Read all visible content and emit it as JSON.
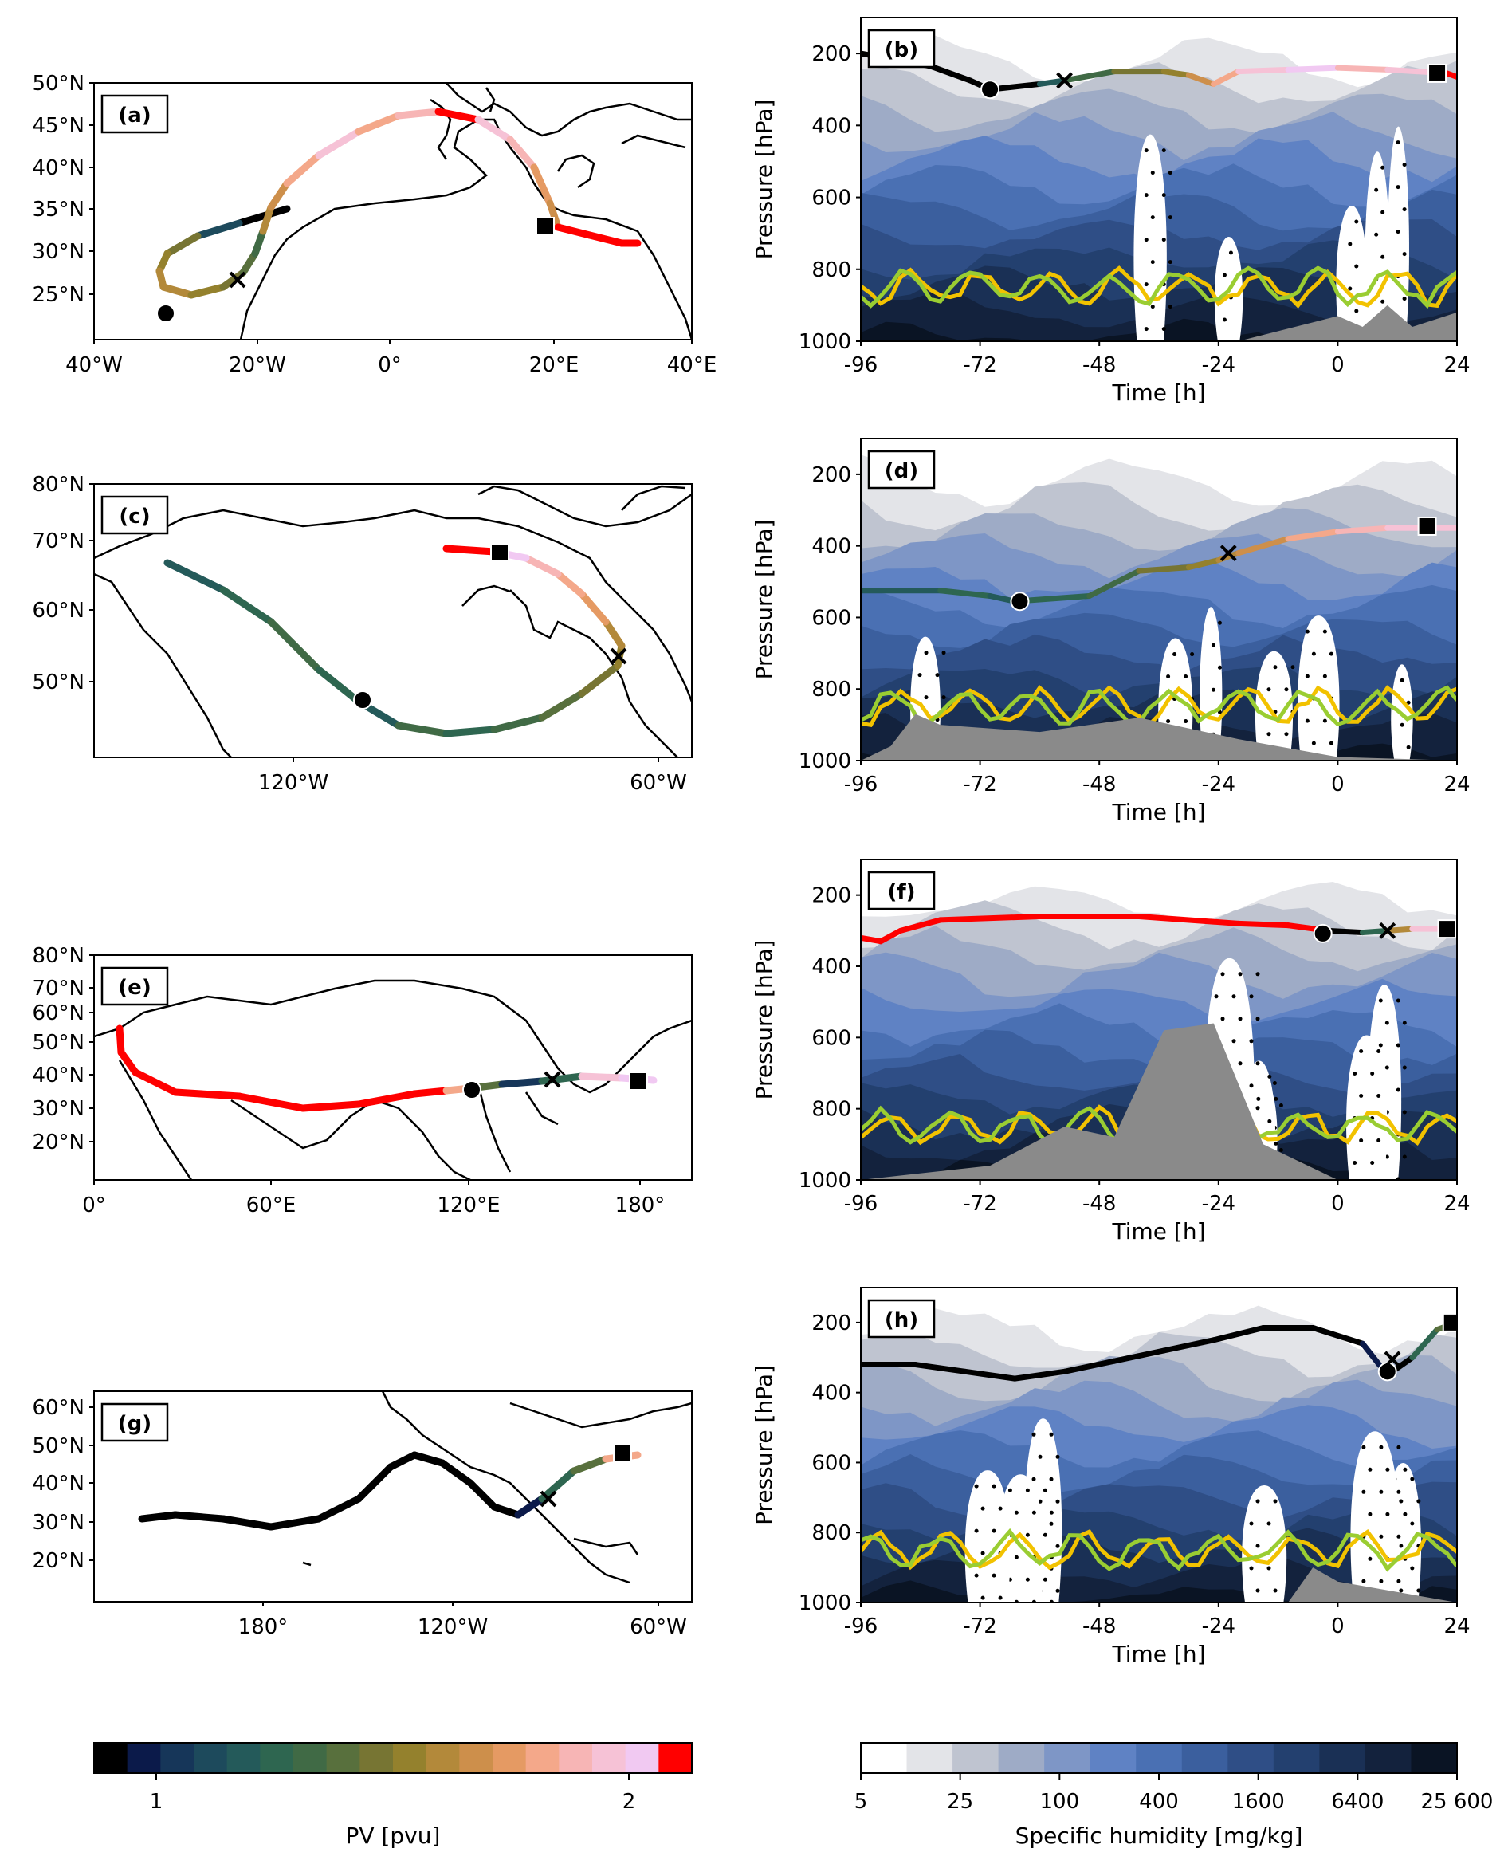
{
  "chart_data": [
    {
      "type": "line",
      "panel": "map",
      "label": "(a)",
      "yticks": [
        "50°N",
        "45°N",
        "40°N",
        "35°N",
        "30°N",
        "25°N"
      ],
      "xticks": [
        "40°W",
        "20°W",
        "0°",
        "20°E",
        "40°E"
      ]
    },
    {
      "type": "heatmap",
      "panel": "section",
      "label": "(b)",
      "ylabel": "Pressure [hPa]",
      "xlabel": "Time [h]",
      "yticks": [
        "200",
        "400",
        "600",
        "800",
        "1000"
      ],
      "xticks": [
        "-96",
        "-72",
        "-48",
        "-24",
        "0",
        "24"
      ],
      "xlim": [
        -96,
        24
      ],
      "ylim": [
        1000,
        100
      ]
    },
    {
      "type": "line",
      "panel": "map",
      "label": "(c)",
      "yticks": [
        "80°N",
        "70°N",
        "60°N",
        "50°N"
      ],
      "xticks": [
        "120°W",
        "60°W"
      ]
    },
    {
      "type": "heatmap",
      "panel": "section",
      "label": "(d)",
      "ylabel": "Pressure [hPa]",
      "xlabel": "Time [h]",
      "yticks": [
        "200",
        "400",
        "600",
        "800",
        "1000"
      ],
      "xticks": [
        "-96",
        "-72",
        "-48",
        "-24",
        "0",
        "24"
      ],
      "xlim": [
        -96,
        24
      ],
      "ylim": [
        1000,
        100
      ]
    },
    {
      "type": "line",
      "panel": "map",
      "label": "(e)",
      "yticks": [
        "80°N",
        "70°N",
        "60°N",
        "50°N",
        "40°N",
        "30°N",
        "20°N"
      ],
      "xticks": [
        "0°",
        "60°E",
        "120°E",
        "180°"
      ]
    },
    {
      "type": "heatmap",
      "panel": "section",
      "label": "(f)",
      "ylabel": "Pressure [hPa]",
      "xlabel": "Time [h]",
      "yticks": [
        "200",
        "400",
        "600",
        "800",
        "1000"
      ],
      "xticks": [
        "-96",
        "-72",
        "-48",
        "-24",
        "0",
        "24"
      ],
      "xlim": [
        -96,
        24
      ],
      "ylim": [
        1000,
        100
      ]
    },
    {
      "type": "line",
      "panel": "map",
      "label": "(g)",
      "yticks": [
        "60°N",
        "50°N",
        "40°N",
        "30°N",
        "20°N"
      ],
      "xticks": [
        "180°",
        "120°W",
        "60°W"
      ]
    },
    {
      "type": "heatmap",
      "panel": "section",
      "label": "(h)",
      "ylabel": "Pressure [hPa]",
      "xlabel": "Time [h]",
      "yticks": [
        "200",
        "400",
        "600",
        "800",
        "1000"
      ],
      "xticks": [
        "-96",
        "-72",
        "-48",
        "-24",
        "0",
        "24"
      ],
      "xlim": [
        -96,
        24
      ],
      "ylim": [
        1000,
        100
      ]
    }
  ],
  "colorbars": {
    "pv": {
      "label": "PV [pvu]",
      "ticks": [
        "1",
        "2"
      ],
      "colors": [
        "#000000",
        "#0b1a4a",
        "#163659",
        "#1d4a5c",
        "#245a5a",
        "#2e6650",
        "#406a45",
        "#58703d",
        "#777533",
        "#94812d",
        "#b3893a",
        "#cd8f4b",
        "#e59a63",
        "#f4a88a",
        "#f7b5b5",
        "#f6c2d6",
        "#f1c9f2",
        "#ff0000"
      ]
    },
    "q": {
      "label": "Specific humidity [mg/kg]",
      "ticks": [
        "5",
        "25",
        "100",
        "400",
        "1600",
        "6400",
        "25 600"
      ],
      "colors": [
        "#ffffff",
        "#e3e4e8",
        "#bfc4d0",
        "#9eabc6",
        "#7e96c6",
        "#5f82c4",
        "#4a70b3",
        "#3b5f9e",
        "#2f4e86",
        "#23406f",
        "#1a3055",
        "#13223d",
        "#0a1424"
      ]
    }
  }
}
